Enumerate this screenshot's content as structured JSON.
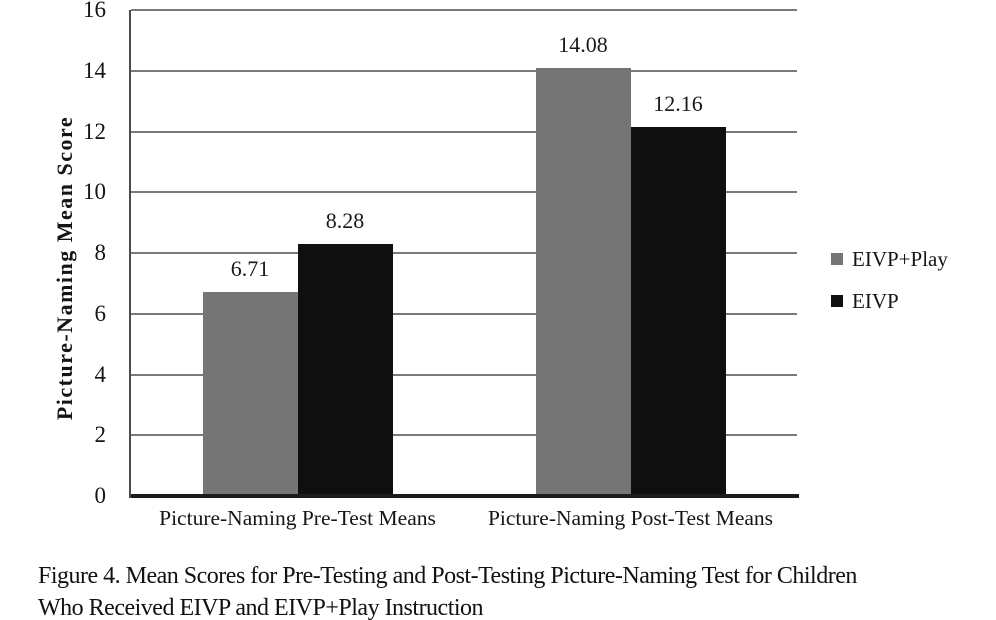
{
  "figure": {
    "caption_lines": [
      "Figure 4. Mean Scores for Pre-Testing and Post-Testing Picture-Naming Test for Children",
      "Who Received EIVP and EIVP+Play Instruction"
    ]
  },
  "chart_data": {
    "type": "bar",
    "title": "",
    "categories": [
      "Picture-Naming Pre-Test Means",
      "Picture-Naming Post-Test Means"
    ],
    "series": [
      {
        "name": "EIVP+Play",
        "color": "#757575",
        "values": [
          6.71,
          14.08
        ]
      },
      {
        "name": "EIVP",
        "color": "#0f0f0f",
        "values": [
          8.28,
          12.16
        ]
      }
    ],
    "ylabel": "Picture-Naming Mean Score",
    "xlabel": "",
    "ylim": [
      0,
      16
    ],
    "ytick_step": 2,
    "grid": "horizontal",
    "value_labels_shown": true,
    "legend_position": "right",
    "colors": {
      "gridline": "#7a7a7a",
      "axis_line": "#4a4a4a",
      "baseline": "#1b1b1b",
      "text": "#151515",
      "background": "#ffffff"
    }
  }
}
